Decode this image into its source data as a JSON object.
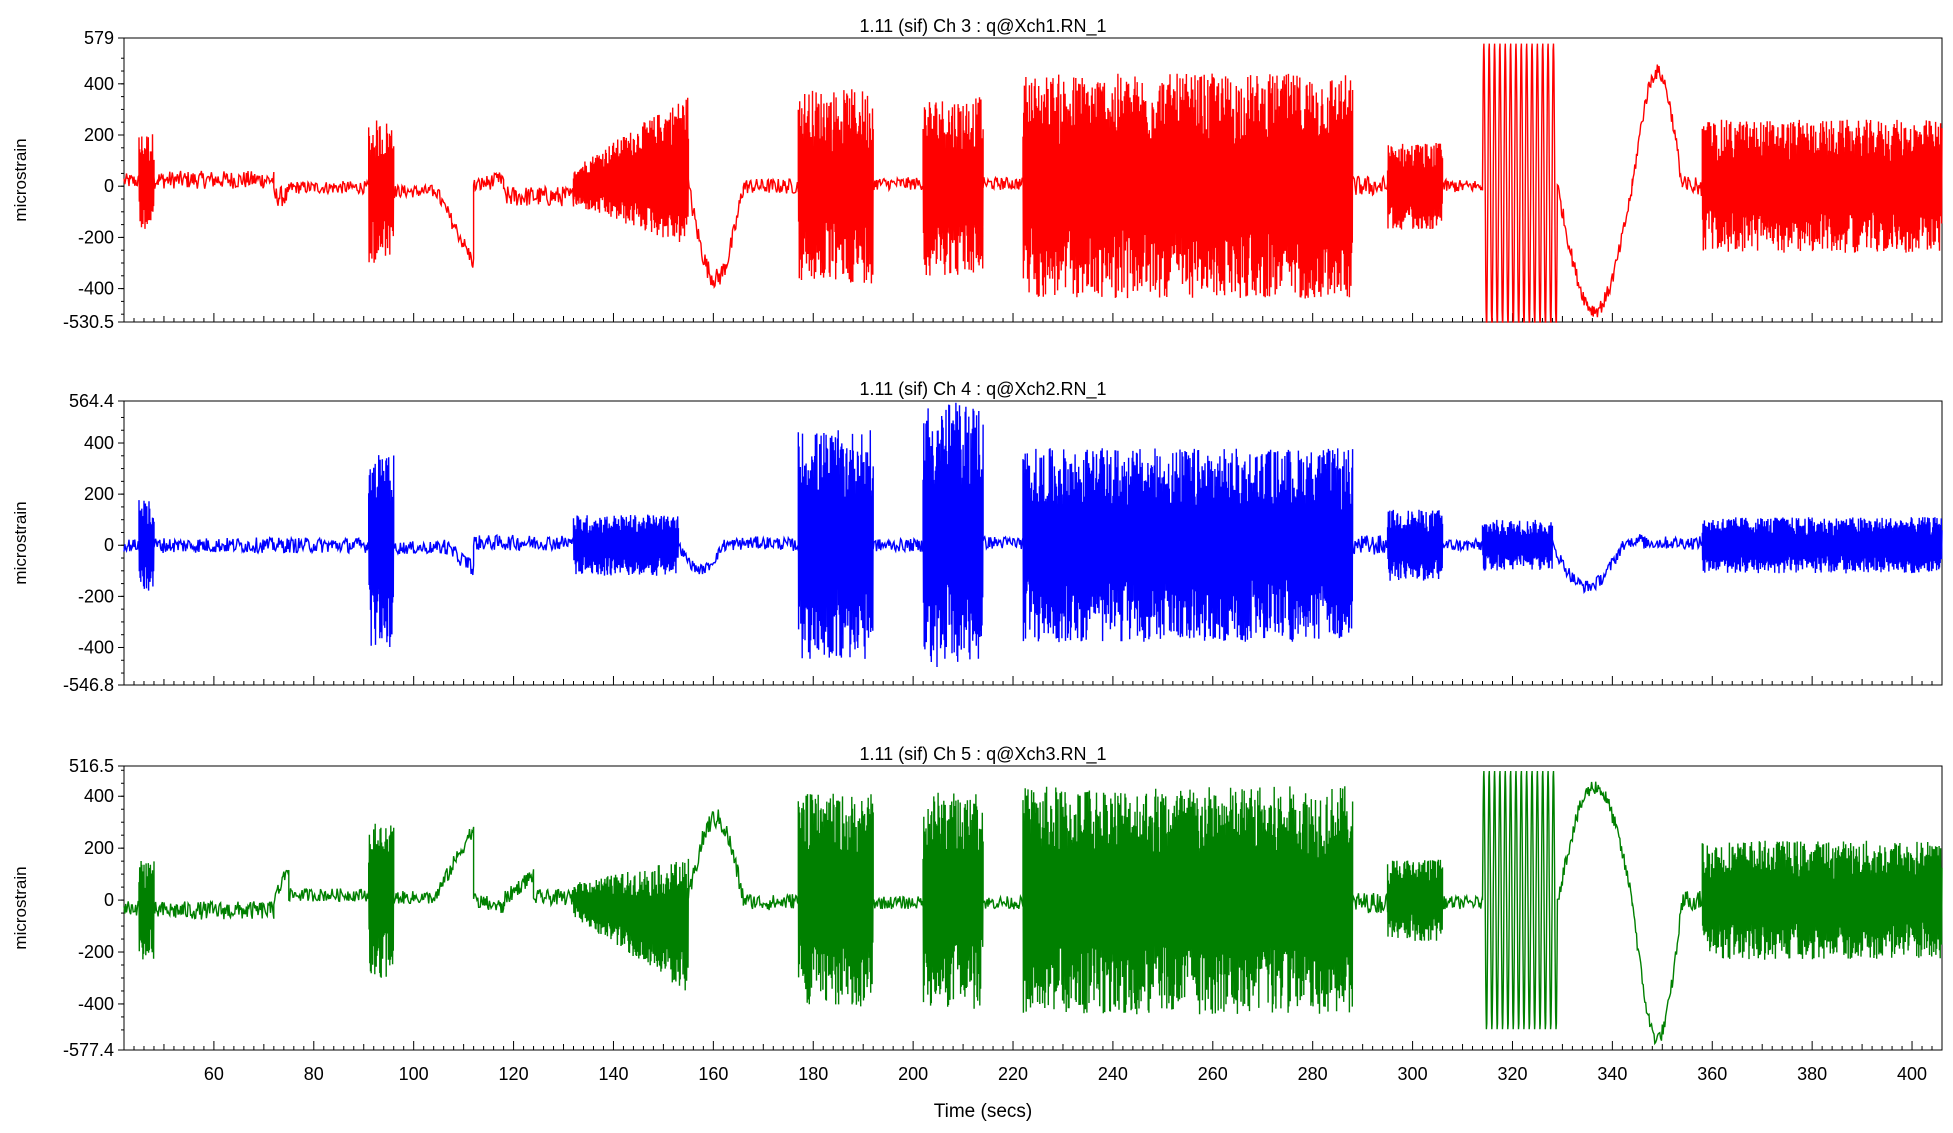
{
  "chart_data": [
    {
      "type": "line",
      "title": "1.11 (sif)  Ch 3 : q@Xch1.RN_1",
      "ylabel": "microstrain",
      "ylim": [
        -530.5,
        579
      ],
      "yticks": [
        579,
        400,
        200,
        0,
        -200,
        -400,
        -530.5
      ],
      "ytick_labels": [
        "579",
        "400",
        "200",
        "0",
        "-200",
        "-400",
        "-530.5"
      ],
      "color": "#ff0000",
      "grid": false,
      "series": [
        {
          "segments": [
            {
              "t0": 42,
              "t1": 45,
              "kind": "flat",
              "base": 20,
              "amp": 30
            },
            {
              "t0": 45,
              "t1": 48,
              "kind": "burst",
              "base": 20,
              "amp": 190
            },
            {
              "t0": 48,
              "t1": 72,
              "kind": "flat",
              "base": 25,
              "amp": 35
            },
            {
              "t0": 72,
              "t1": 75,
              "kind": "dip",
              "base": -40,
              "amp": 40
            },
            {
              "t0": 75,
              "t1": 91,
              "kind": "flat",
              "base": -5,
              "amp": 25
            },
            {
              "t0": 91,
              "t1": 96,
              "kind": "burst",
              "base": -20,
              "amp": 280
            },
            {
              "t0": 96,
              "t1": 104,
              "kind": "flat",
              "base": -20,
              "amp": 25
            },
            {
              "t0": 104,
              "t1": 112,
              "kind": "ramp",
              "base": -300,
              "amp": 30
            },
            {
              "t0": 112,
              "t1": 118,
              "kind": "ramp",
              "base": 30,
              "amp": 30
            },
            {
              "t0": 118,
              "t1": 132,
              "kind": "flat",
              "base": -40,
              "amp": 40
            },
            {
              "t0": 132,
              "t1": 155,
              "kind": "growburst",
              "base": 60,
              "amp": 300
            },
            {
              "t0": 155,
              "t1": 166,
              "kind": "ramp",
              "base": -380,
              "amp": 40
            },
            {
              "t0": 166,
              "t1": 177,
              "kind": "ramp",
              "base": 0,
              "amp": 30
            },
            {
              "t0": 177,
              "t1": 192,
              "kind": "burst",
              "base": 0,
              "amp": 380
            },
            {
              "t0": 192,
              "t1": 202,
              "kind": "flat",
              "base": 10,
              "amp": 25
            },
            {
              "t0": 202,
              "t1": 214,
              "kind": "burst",
              "base": 0,
              "amp": 350
            },
            {
              "t0": 214,
              "t1": 222,
              "kind": "flat",
              "base": 10,
              "amp": 25
            },
            {
              "t0": 222,
              "t1": 288,
              "kind": "burst",
              "base": 0,
              "amp": 440
            },
            {
              "t0": 288,
              "t1": 295,
              "kind": "flat",
              "base": 0,
              "amp": 40
            },
            {
              "t0": 295,
              "t1": 306,
              "kind": "burst",
              "base": 0,
              "amp": 170
            },
            {
              "t0": 306,
              "t1": 314,
              "kind": "flat",
              "base": 0,
              "amp": 25
            },
            {
              "t0": 314,
              "t1": 329,
              "kind": "sine",
              "base": 0,
              "amp": 560
            },
            {
              "t0": 329,
              "t1": 344,
              "kind": "ramp",
              "base": -510,
              "amp": 30
            },
            {
              "t0": 344,
              "t1": 354,
              "kind": "ramp",
              "base": 470,
              "amp": 30
            },
            {
              "t0": 354,
              "t1": 358,
              "kind": "ramp",
              "base": 0,
              "amp": 40
            },
            {
              "t0": 358,
              "t1": 406,
              "kind": "burst",
              "base": 0,
              "amp": 260
            }
          ]
        }
      ]
    },
    {
      "type": "line",
      "title": "1.11 (sif)  Ch 4 : q@Xch2.RN_1",
      "ylabel": "microstrain",
      "ylim": [
        -546.8,
        564.4
      ],
      "yticks": [
        564.4,
        400,
        200,
        0,
        -200,
        -400,
        -546.8
      ],
      "ytick_labels": [
        "564.4",
        "400",
        "200",
        "0",
        "-200",
        "-400",
        "-546.8"
      ],
      "color": "#0000ff",
      "grid": false,
      "series": [
        {
          "segments": [
            {
              "t0": 42,
              "t1": 45,
              "kind": "flat",
              "base": 0,
              "amp": 25
            },
            {
              "t0": 45,
              "t1": 48,
              "kind": "burst",
              "base": 0,
              "amp": 180
            },
            {
              "t0": 48,
              "t1": 91,
              "kind": "flat",
              "base": 0,
              "amp": 30
            },
            {
              "t0": 91,
              "t1": 96,
              "kind": "burst",
              "base": -20,
              "amp": 380
            },
            {
              "t0": 96,
              "t1": 106,
              "kind": "flat",
              "base": -10,
              "amp": 25
            },
            {
              "t0": 106,
              "t1": 112,
              "kind": "ramp",
              "base": -90,
              "amp": 30
            },
            {
              "t0": 112,
              "t1": 132,
              "kind": "flat",
              "base": 10,
              "amp": 30
            },
            {
              "t0": 132,
              "t1": 153,
              "kind": "burst",
              "base": 0,
              "amp": 120
            },
            {
              "t0": 153,
              "t1": 162,
              "kind": "ramp",
              "base": -100,
              "amp": 20
            },
            {
              "t0": 162,
              "t1": 177,
              "kind": "ramp",
              "base": 10,
              "amp": 25
            },
            {
              "t0": 177,
              "t1": 192,
              "kind": "burst",
              "base": 0,
              "amp": 450
            },
            {
              "t0": 192,
              "t1": 202,
              "kind": "flat",
              "base": 0,
              "amp": 25
            },
            {
              "t0": 202,
              "t1": 214,
              "kind": "burst",
              "base": 40,
              "amp": 520
            },
            {
              "t0": 214,
              "t1": 222,
              "kind": "flat",
              "base": 10,
              "amp": 25
            },
            {
              "t0": 222,
              "t1": 288,
              "kind": "burst",
              "base": 0,
              "amp": 380
            },
            {
              "t0": 288,
              "t1": 295,
              "kind": "flat",
              "base": 0,
              "amp": 40
            },
            {
              "t0": 295,
              "t1": 306,
              "kind": "burst",
              "base": 0,
              "amp": 140
            },
            {
              "t0": 306,
              "t1": 314,
              "kind": "flat",
              "base": 0,
              "amp": 25
            },
            {
              "t0": 314,
              "t1": 328,
              "kind": "burst",
              "base": 0,
              "amp": 100
            },
            {
              "t0": 328,
              "t1": 342,
              "kind": "ramp",
              "base": -170,
              "amp": 25
            },
            {
              "t0": 342,
              "t1": 346,
              "kind": "ramp",
              "base": 30,
              "amp": 20
            },
            {
              "t0": 346,
              "t1": 358,
              "kind": "flat",
              "base": 10,
              "amp": 25
            },
            {
              "t0": 358,
              "t1": 406,
              "kind": "burst",
              "base": 0,
              "amp": 110
            }
          ]
        }
      ]
    },
    {
      "type": "line",
      "title": "1.11 (sif)  Ch 5 : q@Xch3.RN_1",
      "ylabel": "microstrain",
      "xlabel": "Time (secs)",
      "xlim": [
        42,
        406
      ],
      "xticks": [
        60,
        80,
        100,
        120,
        140,
        160,
        180,
        200,
        220,
        240,
        260,
        280,
        300,
        320,
        340,
        360,
        380,
        400
      ],
      "ylim": [
        -577.4,
        516.5
      ],
      "yticks": [
        516.5,
        400,
        200,
        0,
        -200,
        -400,
        -577.4
      ],
      "ytick_labels": [
        "516.5",
        "400",
        "200",
        "0",
        "-200",
        "-400",
        "-577.4"
      ],
      "color": "#008000",
      "grid": false,
      "series": [
        {
          "segments": [
            {
              "t0": 42,
              "t1": 45,
              "kind": "flat",
              "base": -30,
              "amp": 30
            },
            {
              "t0": 45,
              "t1": 48,
              "kind": "burst",
              "base": -30,
              "amp": 200
            },
            {
              "t0": 48,
              "t1": 72,
              "kind": "flat",
              "base": -40,
              "amp": 35
            },
            {
              "t0": 72,
              "t1": 75,
              "kind": "ramp",
              "base": 130,
              "amp": 30
            },
            {
              "t0": 75,
              "t1": 91,
              "kind": "flat",
              "base": 20,
              "amp": 25
            },
            {
              "t0": 91,
              "t1": 96,
              "kind": "burst",
              "base": 0,
              "amp": 300
            },
            {
              "t0": 96,
              "t1": 104,
              "kind": "flat",
              "base": 10,
              "amp": 25
            },
            {
              "t0": 104,
              "t1": 112,
              "kind": "ramp",
              "base": 280,
              "amp": 30
            },
            {
              "t0": 112,
              "t1": 118,
              "kind": "ramp",
              "base": -30,
              "amp": 30
            },
            {
              "t0": 118,
              "t1": 124,
              "kind": "ramp",
              "base": 100,
              "amp": 30
            },
            {
              "t0": 124,
              "t1": 132,
              "kind": "flat",
              "base": 10,
              "amp": 30
            },
            {
              "t0": 132,
              "t1": 155,
              "kind": "growburst",
              "base": -100,
              "amp": 260
            },
            {
              "t0": 155,
              "t1": 166,
              "kind": "ramp",
              "base": 330,
              "amp": 40
            },
            {
              "t0": 166,
              "t1": 177,
              "kind": "ramp",
              "base": -10,
              "amp": 30
            },
            {
              "t0": 177,
              "t1": 192,
              "kind": "burst",
              "base": 0,
              "amp": 410
            },
            {
              "t0": 192,
              "t1": 202,
              "kind": "flat",
              "base": -10,
              "amp": 25
            },
            {
              "t0": 202,
              "t1": 214,
              "kind": "burst",
              "base": 0,
              "amp": 420
            },
            {
              "t0": 214,
              "t1": 222,
              "kind": "flat",
              "base": -10,
              "amp": 25
            },
            {
              "t0": 222,
              "t1": 288,
              "kind": "burst",
              "base": 0,
              "amp": 440
            },
            {
              "t0": 288,
              "t1": 295,
              "kind": "flat",
              "base": -10,
              "amp": 40
            },
            {
              "t0": 295,
              "t1": 306,
              "kind": "burst",
              "base": 0,
              "amp": 160
            },
            {
              "t0": 306,
              "t1": 314,
              "kind": "flat",
              "base": -10,
              "amp": 25
            },
            {
              "t0": 314,
              "t1": 329,
              "kind": "sine",
              "base": 0,
              "amp": 500
            },
            {
              "t0": 329,
              "t1": 344,
              "kind": "ramp",
              "base": 460,
              "amp": 30
            },
            {
              "t0": 344,
              "t1": 354,
              "kind": "ramp",
              "base": -560,
              "amp": 30
            },
            {
              "t0": 354,
              "t1": 358,
              "kind": "ramp",
              "base": 0,
              "amp": 40
            },
            {
              "t0": 358,
              "t1": 406,
              "kind": "burst",
              "base": 0,
              "amp": 230
            }
          ]
        }
      ]
    }
  ]
}
